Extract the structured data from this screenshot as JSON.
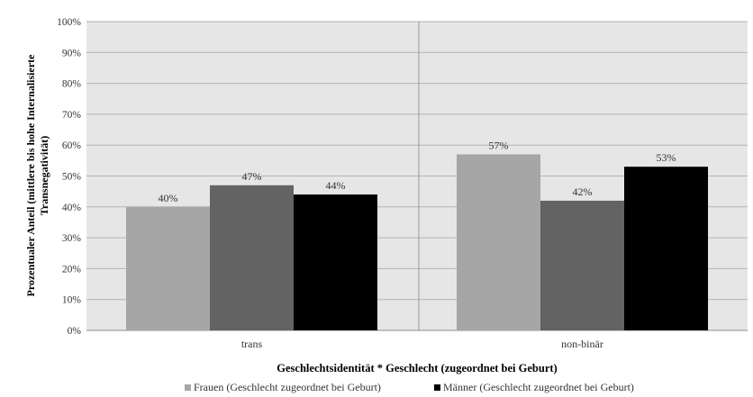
{
  "chart_data": {
    "type": "bar",
    "categories": [
      "trans",
      "non-binär"
    ],
    "series": [
      {
        "name": "Frauen (Geschlecht zugeordnet bei Geburt)",
        "values": [
          40,
          57
        ],
        "color": "#a6a6a6"
      },
      {
        "name": "",
        "values": [
          47,
          42
        ],
        "color": "#636363"
      },
      {
        "name": "Männer (Geschlecht zugeordnet bei Geburt)",
        "values": [
          44,
          53
        ],
        "color": "#000000"
      }
    ],
    "data_labels": [
      [
        "40%",
        "57%"
      ],
      [
        "47%",
        "42%"
      ],
      [
        "44%",
        "53%"
      ]
    ],
    "xlabel": "Geschlechtsidentität * Geschlecht (zugeordnet bei Geburt)",
    "ylabel_lines": [
      "Prozentualer Anteil (mittlere bis hohe Internalisierte",
      "Transnegativität)"
    ],
    "ylim": [
      0,
      100
    ],
    "yticks": [
      "0%",
      "10%",
      "20%",
      "30%",
      "40%",
      "50%",
      "60%",
      "70%",
      "80%",
      "90%",
      "100%"
    ],
    "grid": true,
    "plot_background": "#e6e6e6",
    "legend": {
      "position": "bottom",
      "entries": [
        {
          "label": "Frauen (Geschlecht zugeordnet bei Geburt)",
          "color": "#a6a6a6"
        },
        {
          "label": "Männer (Geschlecht zugeordnet bei Geburt)",
          "color": "#000000"
        }
      ]
    }
  }
}
